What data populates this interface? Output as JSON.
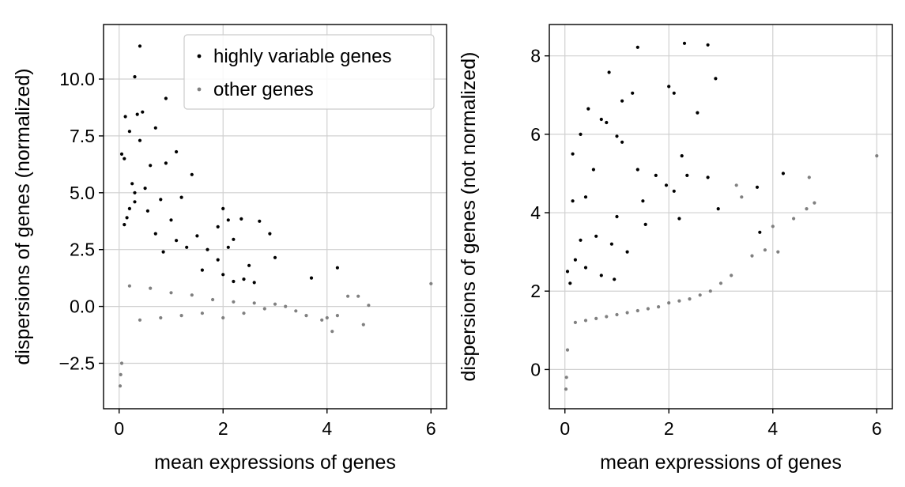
{
  "chart_data": [
    {
      "type": "scatter",
      "title": "",
      "xlabel": "mean expressions of genes",
      "ylabel": "dispersions of genes (normalized)",
      "xlim": [
        -0.3,
        6.3
      ],
      "ylim": [
        -4.5,
        12.4
      ],
      "xticks": [
        0,
        2,
        4,
        6
      ],
      "yticks": [
        -2.5,
        0.0,
        2.5,
        5.0,
        7.5,
        10.0
      ],
      "ytick_labels": [
        "−2.5",
        "0.0",
        "2.5",
        "5.0",
        "7.5",
        "10.0"
      ],
      "xtick_labels": [
        "0",
        "2",
        "4",
        "6"
      ],
      "grid": true,
      "legend": {
        "placement": "top-right",
        "entries": [
          "highly variable genes",
          "other genes"
        ]
      },
      "series": [
        {
          "name": "highly variable genes",
          "color": "#000000",
          "points": [
            [
              0.4,
              11.45
            ],
            [
              0.3,
              10.1
            ],
            [
              0.12,
              8.35
            ],
            [
              0.45,
              8.55
            ],
            [
              0.35,
              8.45
            ],
            [
              0.2,
              7.7
            ],
            [
              0.4,
              7.3
            ],
            [
              0.7,
              7.85
            ],
            [
              0.9,
              9.15
            ],
            [
              1.1,
              6.8
            ],
            [
              0.05,
              6.7
            ],
            [
              0.1,
              6.5
            ],
            [
              0.9,
              6.3
            ],
            [
              1.4,
              5.8
            ],
            [
              0.6,
              6.2
            ],
            [
              0.25,
              5.4
            ],
            [
              0.5,
              5.2
            ],
            [
              0.3,
              5.0
            ],
            [
              1.2,
              4.8
            ],
            [
              0.8,
              4.7
            ],
            [
              2.0,
              4.3
            ],
            [
              2.1,
              3.8
            ],
            [
              2.35,
              3.85
            ],
            [
              2.7,
              3.75
            ],
            [
              2.9,
              3.2
            ],
            [
              1.9,
              3.5
            ],
            [
              1.5,
              3.1
            ],
            [
              2.2,
              2.95
            ],
            [
              1.7,
              2.5
            ],
            [
              1.9,
              2.05
            ],
            [
              2.1,
              2.6
            ],
            [
              2.5,
              1.8
            ],
            [
              3.0,
              2.15
            ],
            [
              2.0,
              1.4
            ],
            [
              1.1,
              2.9
            ],
            [
              1.3,
              2.6
            ],
            [
              0.7,
              3.2
            ],
            [
              0.2,
              4.3
            ],
            [
              0.15,
              3.9
            ],
            [
              0.1,
              3.6
            ],
            [
              1.6,
              1.6
            ],
            [
              2.2,
              1.1
            ],
            [
              2.4,
              1.2
            ],
            [
              2.6,
              1.05
            ],
            [
              3.7,
              1.25
            ],
            [
              4.2,
              1.7
            ],
            [
              1.0,
              3.8
            ],
            [
              0.55,
              4.2
            ],
            [
              0.3,
              4.6
            ],
            [
              0.85,
              2.4
            ]
          ]
        },
        {
          "name": "other genes",
          "color": "#808080",
          "points": [
            [
              6.0,
              1.0
            ],
            [
              4.8,
              0.05
            ],
            [
              4.6,
              0.45
            ],
            [
              4.4,
              0.45
            ],
            [
              4.1,
              -1.1
            ],
            [
              4.0,
              -0.5
            ],
            [
              4.2,
              -0.4
            ],
            [
              3.9,
              -0.6
            ],
            [
              4.7,
              -0.8
            ],
            [
              3.6,
              -0.4
            ],
            [
              3.4,
              -0.2
            ],
            [
              3.2,
              0.0
            ],
            [
              3.0,
              0.1
            ],
            [
              2.8,
              -0.1
            ],
            [
              2.6,
              0.15
            ],
            [
              2.4,
              -0.3
            ],
            [
              2.2,
              0.2
            ],
            [
              2.0,
              -0.5
            ],
            [
              1.8,
              0.3
            ],
            [
              1.6,
              -0.3
            ],
            [
              1.4,
              0.5
            ],
            [
              1.2,
              -0.4
            ],
            [
              1.0,
              0.6
            ],
            [
              0.8,
              -0.5
            ],
            [
              0.6,
              0.8
            ],
            [
              0.4,
              -0.6
            ],
            [
              0.2,
              0.9
            ],
            [
              0.05,
              -2.5
            ],
            [
              0.02,
              -3.5
            ],
            [
              0.03,
              -3.0
            ]
          ]
        }
      ]
    },
    {
      "type": "scatter",
      "title": "",
      "xlabel": "mean expressions of genes",
      "ylabel": "dispersions of genes (not normalized)",
      "xlim": [
        -0.3,
        6.3
      ],
      "ylim": [
        -1.0,
        8.8
      ],
      "xticks": [
        0,
        2,
        4,
        6
      ],
      "yticks": [
        0,
        2,
        4,
        6,
        8
      ],
      "ytick_labels": [
        "0",
        "2",
        "4",
        "6",
        "8"
      ],
      "xtick_labels": [
        "0",
        "2",
        "4",
        "6"
      ],
      "grid": true,
      "legend": null,
      "series": [
        {
          "name": "highly variable genes",
          "color": "#000000",
          "points": [
            [
              2.3,
              8.32
            ],
            [
              2.75,
              8.28
            ],
            [
              1.4,
              8.22
            ],
            [
              0.85,
              7.58
            ],
            [
              2.9,
              7.42
            ],
            [
              2.0,
              7.22
            ],
            [
              2.1,
              7.05
            ],
            [
              1.3,
              7.05
            ],
            [
              1.1,
              6.85
            ],
            [
              0.45,
              6.65
            ],
            [
              2.55,
              6.55
            ],
            [
              0.7,
              6.38
            ],
            [
              0.8,
              6.3
            ],
            [
              0.3,
              6.0
            ],
            [
              1.0,
              5.95
            ],
            [
              1.1,
              5.8
            ],
            [
              0.15,
              5.5
            ],
            [
              2.25,
              5.45
            ],
            [
              0.55,
              5.1
            ],
            [
              1.4,
              5.1
            ],
            [
              4.2,
              5.0
            ],
            [
              1.75,
              4.95
            ],
            [
              2.35,
              4.95
            ],
            [
              2.75,
              4.9
            ],
            [
              1.95,
              4.7
            ],
            [
              2.1,
              4.55
            ],
            [
              3.7,
              4.65
            ],
            [
              0.4,
              4.4
            ],
            [
              1.5,
              4.3
            ],
            [
              2.95,
              4.1
            ],
            [
              1.0,
              3.9
            ],
            [
              1.55,
              3.7
            ],
            [
              2.2,
              3.85
            ],
            [
              3.75,
              3.5
            ],
            [
              0.6,
              3.4
            ],
            [
              0.9,
              3.2
            ],
            [
              1.2,
              3.0
            ],
            [
              0.3,
              3.3
            ],
            [
              0.2,
              2.8
            ],
            [
              0.4,
              2.6
            ],
            [
              0.7,
              2.4
            ],
            [
              0.95,
              2.3
            ],
            [
              0.1,
              2.2
            ],
            [
              0.05,
              2.5
            ],
            [
              0.15,
              4.3
            ]
          ]
        },
        {
          "name": "other genes",
          "color": "#808080",
          "points": [
            [
              6.0,
              5.45
            ],
            [
              4.8,
              4.25
            ],
            [
              4.65,
              4.1
            ],
            [
              4.7,
              4.9
            ],
            [
              4.4,
              3.85
            ],
            [
              4.0,
              3.65
            ],
            [
              4.1,
              3.0
            ],
            [
              3.85,
              3.05
            ],
            [
              3.6,
              2.9
            ],
            [
              3.3,
              4.7
            ],
            [
              3.4,
              4.4
            ],
            [
              3.2,
              2.4
            ],
            [
              3.0,
              2.2
            ],
            [
              2.8,
              2.0
            ],
            [
              2.6,
              1.9
            ],
            [
              2.4,
              1.8
            ],
            [
              2.2,
              1.75
            ],
            [
              2.0,
              1.7
            ],
            [
              1.8,
              1.6
            ],
            [
              1.6,
              1.55
            ],
            [
              1.4,
              1.5
            ],
            [
              1.2,
              1.45
            ],
            [
              1.0,
              1.4
            ],
            [
              0.8,
              1.35
            ],
            [
              0.6,
              1.3
            ],
            [
              0.4,
              1.25
            ],
            [
              0.2,
              1.2
            ],
            [
              0.05,
              0.5
            ],
            [
              0.03,
              -0.2
            ],
            [
              0.02,
              -0.5
            ]
          ]
        }
      ]
    }
  ]
}
